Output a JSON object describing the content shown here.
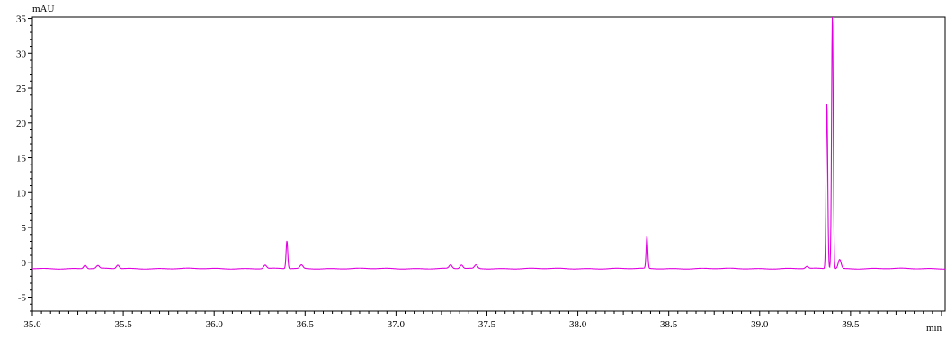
{
  "chart_data": {
    "type": "line",
    "title": "",
    "xlabel": "",
    "ylabel": "",
    "x_unit": "min",
    "y_unit": "mAU",
    "xlim": [
      35.0,
      40.02
    ],
    "ylim": [
      -7,
      35.2
    ],
    "x_major_ticks": [
      35.0,
      35.5,
      36.0,
      36.5,
      37.0,
      37.5,
      38.0,
      38.5,
      39.0,
      39.5
    ],
    "x_tick_labels": [
      "35.0",
      "35.5",
      "36.0",
      "36.5",
      "37.0",
      "37.5",
      "38.0",
      "38.5",
      "39.0",
      "39.5"
    ],
    "y_major_ticks": [
      -5,
      0,
      5,
      10,
      15,
      20,
      25,
      30,
      35
    ],
    "y_tick_labels": [
      "-5",
      "0",
      "5",
      "10",
      "15",
      "20",
      "25",
      "30",
      "35"
    ],
    "grid": false,
    "legend": "none",
    "line_color": "#e000e0",
    "baseline": -0.9,
    "peaks": [
      {
        "rt": 35.29,
        "height": 0.5
      },
      {
        "rt": 35.36,
        "height": 0.4
      },
      {
        "rt": 35.47,
        "height": 0.5
      },
      {
        "rt": 36.28,
        "height": 0.5
      },
      {
        "rt": 36.4,
        "height": 4.0
      },
      {
        "rt": 36.48,
        "height": 0.5
      },
      {
        "rt": 37.3,
        "height": 0.5
      },
      {
        "rt": 37.36,
        "height": 0.5
      },
      {
        "rt": 37.44,
        "height": 0.5
      },
      {
        "rt": 38.38,
        "height": 4.6
      },
      {
        "rt": 39.26,
        "height": 0.3
      },
      {
        "rt": 39.37,
        "height": 23.8
      },
      {
        "rt": 39.4,
        "height": 37.0
      },
      {
        "rt": 39.44,
        "height": 1.3
      }
    ]
  }
}
